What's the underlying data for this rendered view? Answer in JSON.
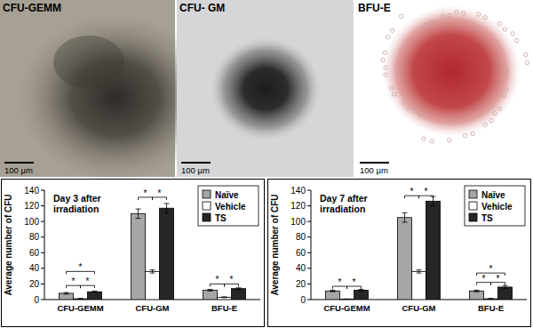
{
  "panels": [
    {
      "label": "CFU-GEMM",
      "scale_bar": "100 µm"
    },
    {
      "label": "CFU- GM",
      "scale_bar": "100 µm"
    },
    {
      "label": "BFU-E",
      "scale_bar": "100 µm"
    }
  ],
  "chart_data": [
    {
      "type": "bar",
      "title": "Day 3 after irradiation",
      "categories": [
        "CFU-GEMM",
        "CFU-GM",
        "BFU-E"
      ],
      "series": [
        {
          "name": "Naïve",
          "color": "#a6a6a6",
          "values": [
            8,
            110,
            12
          ],
          "errors": [
            1,
            6,
            1
          ]
        },
        {
          "name": "Vehicle",
          "color": "#ffffff",
          "values": [
            1,
            36,
            3
          ],
          "errors": [
            0.5,
            2,
            0.5
          ]
        },
        {
          "name": "TS",
          "color": "#262626",
          "values": [
            10,
            117,
            14
          ],
          "errors": [
            1,
            6,
            1
          ]
        }
      ],
      "y_label": "Average number of CFU",
      "ylim": [
        0,
        140
      ],
      "yticks": [
        0,
        20,
        40,
        60,
        80,
        100,
        120,
        140
      ],
      "legend": "upper-right",
      "grid": false,
      "annotations": [
        {
          "text": "*",
          "category": 0,
          "between": [
            0,
            2
          ],
          "y": 36
        },
        {
          "text": "*",
          "category": 0,
          "between": [
            0,
            1
          ],
          "y": 18
        },
        {
          "text": "*",
          "category": 0,
          "between": [
            1,
            2
          ],
          "y": 18
        },
        {
          "text": "*",
          "category": 1,
          "between": [
            0,
            1
          ],
          "y": 131
        },
        {
          "text": "*",
          "category": 1,
          "between": [
            1,
            2
          ],
          "y": 131
        },
        {
          "text": "*",
          "category": 2,
          "between": [
            0,
            1
          ],
          "y": 20
        },
        {
          "text": "*",
          "category": 2,
          "between": [
            1,
            2
          ],
          "y": 20
        }
      ]
    },
    {
      "type": "bar",
      "title": "Day 7 after irradiation",
      "categories": [
        "CFU-GEMM",
        "CFU-GM",
        "BFU-E"
      ],
      "series": [
        {
          "name": "Naïve",
          "color": "#a6a6a6",
          "values": [
            11,
            105,
            11
          ],
          "errors": [
            1,
            6,
            1
          ]
        },
        {
          "name": "Vehicle",
          "color": "#ffffff",
          "values": [
            0.5,
            36,
            1
          ],
          "errors": [
            0.3,
            2,
            0.5
          ]
        },
        {
          "name": "TS",
          "color": "#262626",
          "values": [
            12,
            126,
            16
          ],
          "errors": [
            1,
            6,
            2
          ]
        }
      ],
      "y_label": "Average number of CFU",
      "ylim": [
        0,
        140
      ],
      "yticks": [
        0,
        20,
        40,
        60,
        80,
        100,
        120,
        140
      ],
      "legend": "upper-right",
      "grid": false,
      "annotations": [
        {
          "text": "*",
          "category": 0,
          "between": [
            0,
            1
          ],
          "y": 17
        },
        {
          "text": "*",
          "category": 0,
          "between": [
            1,
            2
          ],
          "y": 17
        },
        {
          "text": "*",
          "category": 1,
          "between": [
            0,
            1
          ],
          "y": 133
        },
        {
          "text": "*",
          "category": 1,
          "between": [
            1,
            2
          ],
          "y": 133
        },
        {
          "text": "*",
          "category": 2,
          "between": [
            0,
            2
          ],
          "y": 34
        },
        {
          "text": "*",
          "category": 2,
          "between": [
            0,
            1
          ],
          "y": 22
        },
        {
          "text": "*",
          "category": 2,
          "between": [
            1,
            2
          ],
          "y": 22
        }
      ]
    }
  ]
}
